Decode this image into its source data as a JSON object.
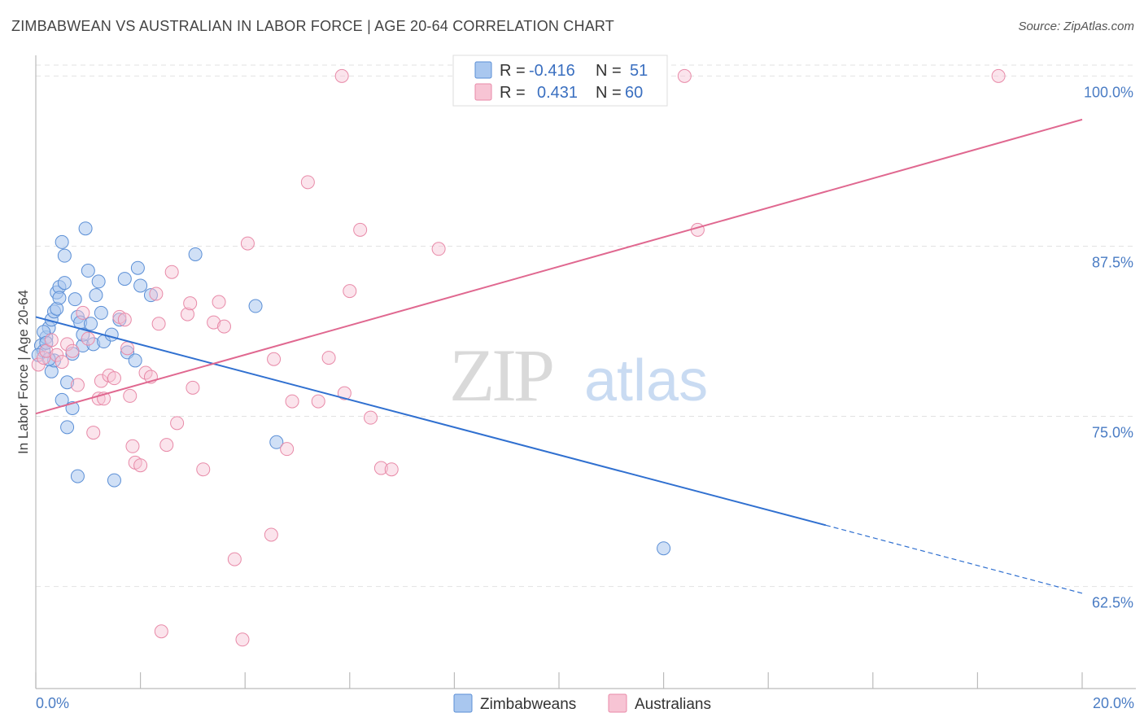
{
  "header": {
    "title": "ZIMBABWEAN VS AUSTRALIAN IN LABOR FORCE | AGE 20-64 CORRELATION CHART",
    "source": "Source: ZipAtlas.com"
  },
  "watermark": {
    "zip": "ZIP",
    "atlas": "atlas"
  },
  "legend": {
    "r_label": "R =",
    "n_label": "N =",
    "rows": [
      {
        "name": "Zimbabweans",
        "r": "-0.416",
        "n": "51"
      },
      {
        "name": "Australians",
        "r": "0.431",
        "n": "60"
      }
    ]
  },
  "colors": {
    "zimbabweans_fill": "#a9c7ef",
    "zimbabweans_stroke": "#5b8fd6",
    "zimbabweans_line": "#3070d0",
    "australians_fill": "#f7c4d4",
    "australians_stroke": "#e88aa8",
    "australians_line": "#e06890",
    "tick_text": "#4a7cc4"
  },
  "chart_data": {
    "type": "scatter",
    "title": "ZIMBABWEAN VS AUSTRALIAN IN LABOR FORCE | AGE 20-64 CORRELATION CHART",
    "xlabel": "",
    "ylabel": "In Labor Force | Age 20-64",
    "xlim": [
      0,
      20
    ],
    "ylim": [
      55,
      100.8
    ],
    "x_tick_labels": [
      "0.0%",
      "20.0%"
    ],
    "y_ticks": [
      62.5,
      75.0,
      87.5,
      100.0
    ],
    "y_tick_labels": [
      "62.5%",
      "75.0%",
      "87.5%",
      "100.0%"
    ],
    "grid": true,
    "series": [
      {
        "name": "Zimbabweans",
        "r": -0.416,
        "n": 51,
        "trend": {
          "x": [
            0,
            15.1
          ],
          "y": [
            82.3,
            67.0
          ],
          "dashed_to": [
            20,
            62.0
          ]
        },
        "points": [
          [
            0.1,
            80.2
          ],
          [
            0.15,
            79.8
          ],
          [
            0.2,
            80.8
          ],
          [
            0.25,
            81.5
          ],
          [
            0.3,
            82.1
          ],
          [
            0.35,
            82.7
          ],
          [
            0.4,
            84.1
          ],
          [
            0.45,
            84.5
          ],
          [
            0.5,
            87.8
          ],
          [
            0.55,
            86.8
          ],
          [
            0.6,
            77.5
          ],
          [
            0.7,
            75.6
          ],
          [
            0.75,
            83.6
          ],
          [
            0.8,
            82.3
          ],
          [
            0.85,
            81.9
          ],
          [
            0.9,
            80.2
          ],
          [
            1.0,
            85.7
          ],
          [
            1.05,
            81.8
          ],
          [
            1.1,
            80.3
          ],
          [
            1.15,
            83.9
          ],
          [
            1.2,
            84.9
          ],
          [
            1.25,
            82.6
          ],
          [
            0.5,
            76.2
          ],
          [
            0.6,
            74.2
          ],
          [
            0.8,
            70.6
          ],
          [
            1.5,
            70.3
          ],
          [
            1.6,
            82.1
          ],
          [
            1.7,
            85.1
          ],
          [
            1.75,
            79.7
          ],
          [
            1.9,
            79.1
          ],
          [
            1.95,
            85.9
          ],
          [
            2.0,
            84.6
          ],
          [
            2.2,
            83.9
          ],
          [
            3.05,
            86.9
          ],
          [
            4.2,
            83.1
          ],
          [
            4.6,
            73.1
          ],
          [
            12.0,
            65.3
          ],
          [
            0.3,
            78.3
          ],
          [
            0.35,
            79.1
          ],
          [
            0.95,
            88.8
          ],
          [
            0.05,
            79.5
          ],
          [
            0.15,
            81.2
          ],
          [
            0.2,
            80.4
          ],
          [
            0.25,
            79.2
          ],
          [
            0.4,
            82.9
          ],
          [
            0.45,
            83.7
          ],
          [
            0.55,
            84.8
          ],
          [
            1.3,
            80.5
          ],
          [
            1.45,
            81.0
          ],
          [
            0.7,
            79.6
          ],
          [
            0.9,
            81.0
          ]
        ]
      },
      {
        "name": "Australians",
        "r": 0.431,
        "n": 60,
        "trend": {
          "x": [
            0,
            20
          ],
          "y": [
            75.2,
            96.8
          ]
        },
        "points": [
          [
            0.05,
            78.8
          ],
          [
            0.15,
            79.3
          ],
          [
            0.2,
            79.8
          ],
          [
            0.3,
            80.6
          ],
          [
            0.4,
            79.5
          ],
          [
            0.5,
            79.0
          ],
          [
            0.6,
            80.3
          ],
          [
            0.7,
            79.8
          ],
          [
            0.8,
            77.3
          ],
          [
            0.9,
            82.6
          ],
          [
            1.0,
            80.7
          ],
          [
            1.1,
            73.8
          ],
          [
            1.2,
            76.3
          ],
          [
            1.25,
            77.6
          ],
          [
            1.3,
            76.3
          ],
          [
            1.4,
            78.0
          ],
          [
            1.5,
            77.8
          ],
          [
            1.6,
            82.3
          ],
          [
            1.7,
            82.1
          ],
          [
            1.75,
            80.0
          ],
          [
            1.8,
            76.5
          ],
          [
            1.85,
            72.8
          ],
          [
            1.9,
            71.6
          ],
          [
            2.0,
            71.4
          ],
          [
            2.1,
            78.2
          ],
          [
            2.2,
            77.9
          ],
          [
            2.3,
            84.0
          ],
          [
            2.35,
            81.8
          ],
          [
            2.5,
            72.9
          ],
          [
            2.6,
            85.6
          ],
          [
            2.7,
            74.5
          ],
          [
            2.9,
            82.5
          ],
          [
            2.95,
            83.3
          ],
          [
            3.0,
            77.1
          ],
          [
            3.2,
            71.1
          ],
          [
            3.4,
            81.9
          ],
          [
            3.5,
            83.4
          ],
          [
            3.6,
            81.6
          ],
          [
            3.8,
            64.5
          ],
          [
            3.95,
            58.6
          ],
          [
            4.05,
            87.7
          ],
          [
            4.5,
            66.3
          ],
          [
            4.55,
            79.2
          ],
          [
            4.8,
            72.6
          ],
          [
            4.9,
            76.1
          ],
          [
            5.2,
            92.2
          ],
          [
            5.4,
            76.1
          ],
          [
            5.6,
            79.3
          ],
          [
            5.85,
            100.0
          ],
          [
            5.9,
            76.7
          ],
          [
            6.0,
            84.2
          ],
          [
            6.2,
            88.7
          ],
          [
            6.4,
            74.9
          ],
          [
            6.6,
            71.2
          ],
          [
            6.8,
            71.1
          ],
          [
            7.7,
            87.3
          ],
          [
            2.4,
            59.2
          ],
          [
            12.4,
            100.0
          ],
          [
            12.65,
            88.7
          ],
          [
            18.4,
            100.0
          ]
        ]
      }
    ]
  }
}
